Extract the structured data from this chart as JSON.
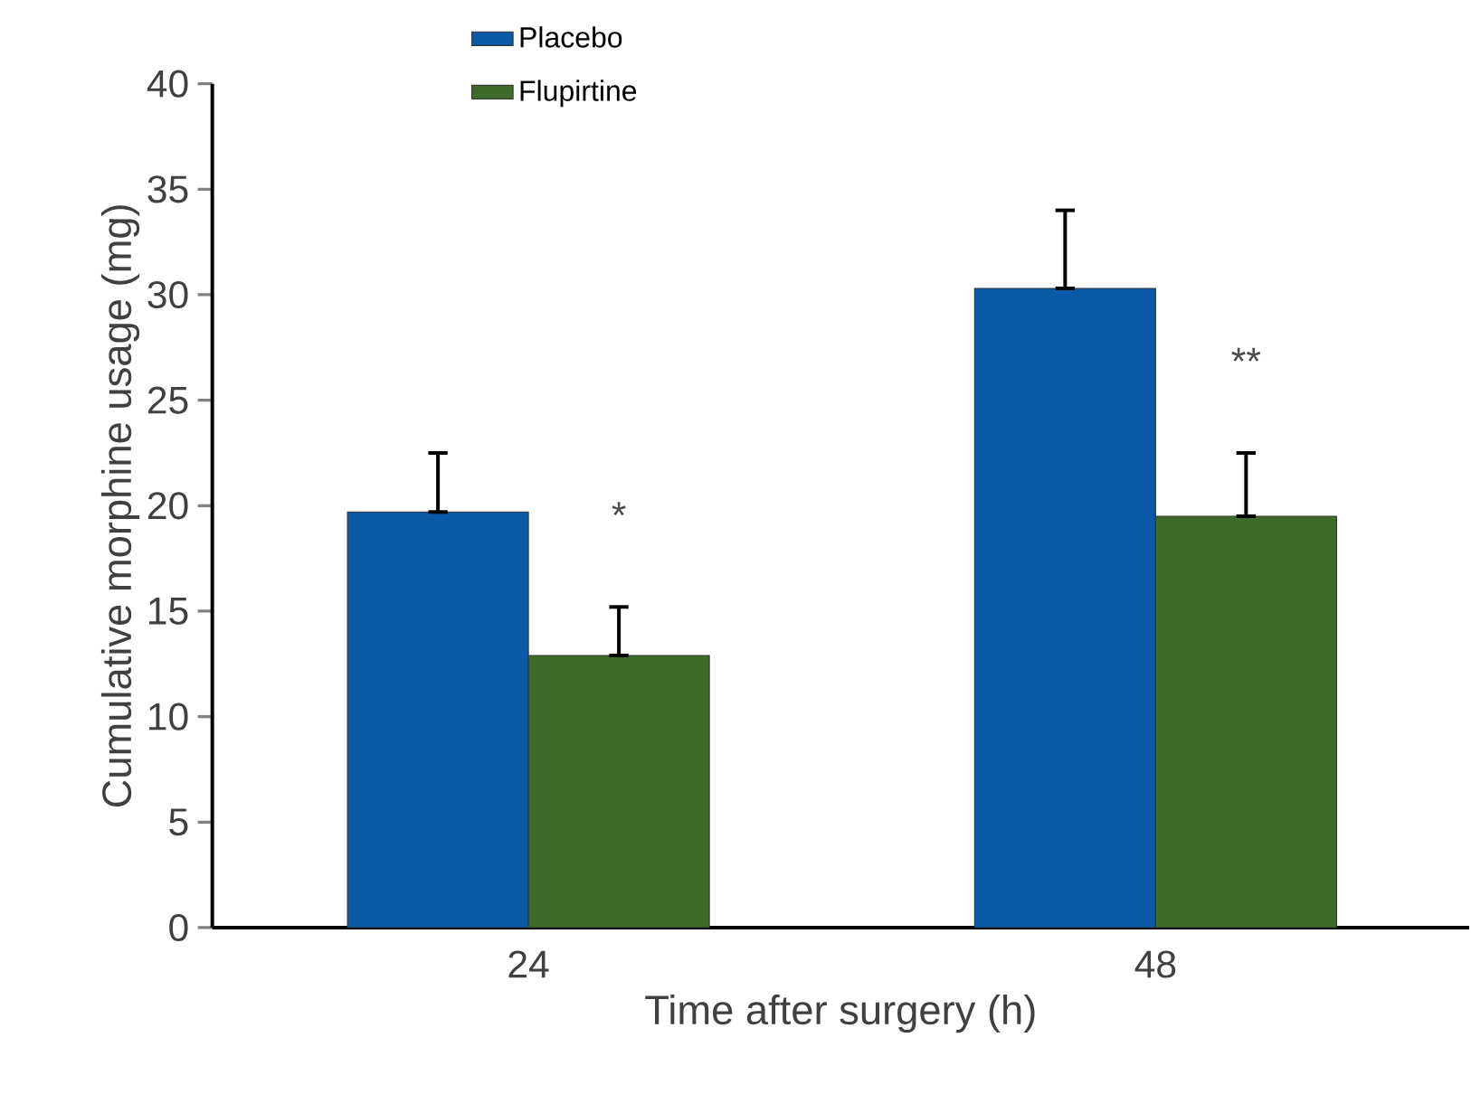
{
  "chart_data": {
    "type": "bar",
    "xlabel": "Time after surgery (h)",
    "ylabel": "Cumulative morphine usage (mg)",
    "categories": [
      "24",
      "48"
    ],
    "series": [
      {
        "name": "Placebo",
        "color": "#0a5aa8",
        "values": [
          19.7,
          30.3
        ],
        "errors": [
          [
            19.7,
            22.5
          ],
          [
            30.3,
            34.0
          ]
        ]
      },
      {
        "name": "Flupirtine",
        "color": "#3e6b2a",
        "values": [
          12.9,
          19.5
        ],
        "errors": [
          [
            12.9,
            15.2
          ],
          [
            19.5,
            22.5
          ]
        ]
      }
    ],
    "ylim": [
      0,
      40
    ],
    "yticks": [
      0,
      5,
      10,
      15,
      20,
      25,
      30,
      35,
      40
    ],
    "legend": "top left",
    "grid": false,
    "annotations": [
      "*",
      "**"
    ]
  }
}
